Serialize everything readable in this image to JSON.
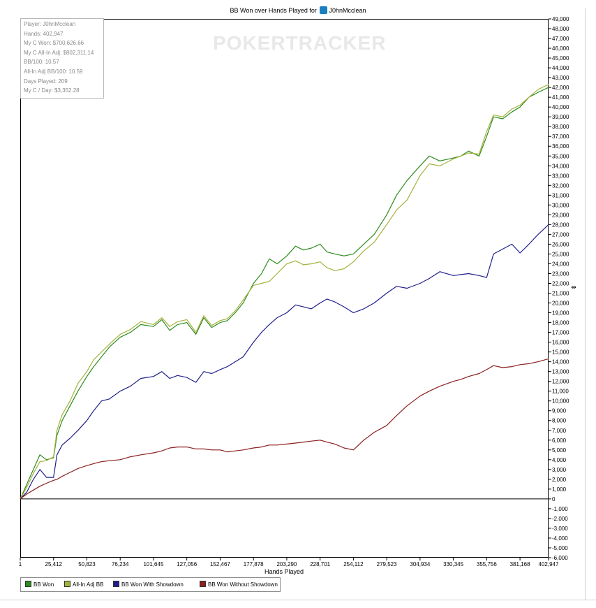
{
  "title_prefix": "BB Won over Hands Played for",
  "player_icon": "poker-site-icon",
  "player_name": "J0hnMcclean",
  "watermark": "POKERTRACKER",
  "stats": [
    "Player: J0hnMcclean",
    "Hands: 402,947",
    "My C Won: $700,626.66",
    "My C All-In Adj: $802,311.14",
    "BB/100: 10.57",
    "All-In Adj BB/100: 10.59",
    "Days Played: 209",
    "My C / Day: $3,352.28"
  ],
  "legend": [
    {
      "label": "BB Won",
      "color": "#2e8b1f"
    },
    {
      "label": "All-In Adj BB",
      "color": "#a4b23b"
    },
    {
      "label": "BB Won With Showdown",
      "color": "#1f1f8c"
    },
    {
      "label": "BB Won Without Showdown",
      "color": "#8b1f1f"
    }
  ],
  "chart_data": {
    "type": "line",
    "title": "BB Won over Hands Played for J0hnMcclean",
    "xlabel": "Hands Played",
    "ylabel": "",
    "xlim": [
      1,
      402947
    ],
    "ylim": [
      -6000,
      49000
    ],
    "x_ticks": [
      1,
      25412,
      50823,
      76234,
      101645,
      127056,
      152467,
      177878,
      203290,
      228701,
      254112,
      279523,
      304934,
      330345,
      355756,
      381168,
      402947
    ],
    "x_tick_labels": [
      "1",
      "25,412",
      "50,823",
      "76,234",
      "101,645",
      "127,056",
      "152,467",
      "177,878",
      "203,290",
      "228,701",
      "254,112",
      "279,523",
      "304,934",
      "330,345",
      "355,756",
      "381,168",
      "402,947"
    ],
    "y_ticks": [
      -6000,
      -5000,
      -4000,
      -3000,
      -2000,
      -1000,
      0,
      1000,
      2000,
      3000,
      4000,
      5000,
      6000,
      7000,
      8000,
      9000,
      10000,
      11000,
      12000,
      13000,
      14000,
      15000,
      16000,
      17000,
      18000,
      19000,
      20000,
      21000,
      22000,
      23000,
      24000,
      25000,
      26000,
      27000,
      28000,
      29000,
      30000,
      31000,
      32000,
      33000,
      34000,
      35000,
      36000,
      37000,
      38000,
      39000,
      40000,
      41000,
      42000,
      43000,
      44000,
      45000,
      46000,
      47000,
      48000,
      49000
    ],
    "y_tick_labels": [
      "-6,000",
      "-5,000",
      "-4,000",
      "-3,000",
      "-2,000",
      "-1,000",
      "0",
      "1,000",
      "2,000",
      "3,000",
      "4,000",
      "5,000",
      "6,000",
      "7,000",
      "8,000",
      "9,000",
      "10,000",
      "11,000",
      "12,000",
      "13,000",
      "14,000",
      "15,000",
      "16,000",
      "17,000",
      "18,000",
      "19,000",
      "20,000",
      "21,000",
      "22,000",
      "23,000",
      "24,000",
      "25,000",
      "26,000",
      "27,000",
      "28,000",
      "29,000",
      "30,000",
      "31,000",
      "32,000",
      "33,000",
      "34,000",
      "35,000",
      "36,000",
      "37,000",
      "38,000",
      "39,000",
      "40,000",
      "41,000",
      "42,000",
      "43,000",
      "44,000",
      "45,000",
      "46,000",
      "47,000",
      "48,000",
      "49,000"
    ],
    "legend_position": "bottom-left",
    "grid": false,
    "series": [
      {
        "name": "BB Won",
        "color": "#2e8b1f",
        "x": [
          1,
          5000,
          10000,
          15000,
          20000,
          25412,
          28000,
          32000,
          38000,
          44000,
          50823,
          56000,
          62000,
          68000,
          76234,
          84000,
          92000,
          101645,
          108000,
          114000,
          120000,
          127056,
          134000,
          140000,
          146000,
          152467,
          158000,
          164000,
          170000,
          177878,
          184000,
          190000,
          196000,
          203290,
          210000,
          216000,
          222000,
          228701,
          234000,
          240000,
          247000,
          254112,
          262000,
          270000,
          279523,
          287000,
          295000,
          304934,
          312000,
          320000,
          330345,
          336000,
          342000,
          350000,
          355756,
          361000,
          368000,
          375000,
          381168,
          388000,
          395000,
          402947
        ],
        "y": [
          0,
          1500,
          3000,
          4500,
          4000,
          4200,
          6500,
          8000,
          9500,
          11000,
          12500,
          13500,
          14500,
          15500,
          16500,
          17000,
          17800,
          17600,
          18300,
          17200,
          17800,
          18000,
          16800,
          18500,
          17500,
          18000,
          18200,
          19000,
          20000,
          22000,
          23000,
          24500,
          24000,
          24800,
          25800,
          25400,
          25600,
          26000,
          25200,
          25000,
          24800,
          25000,
          26000,
          27000,
          29000,
          31000,
          32500,
          34000,
          35000,
          34500,
          34800,
          35000,
          35500,
          35000,
          37000,
          39000,
          38800,
          39500,
          40000,
          41000,
          41500,
          42000
        ]
      },
      {
        "name": "All-In Adj BB",
        "color": "#a4b23b",
        "x": [
          1,
          5000,
          10000,
          15000,
          20000,
          25412,
          28000,
          32000,
          38000,
          44000,
          50823,
          56000,
          62000,
          68000,
          76234,
          84000,
          92000,
          101645,
          108000,
          114000,
          120000,
          127056,
          134000,
          140000,
          146000,
          152467,
          158000,
          164000,
          170000,
          177878,
          184000,
          190000,
          196000,
          203290,
          210000,
          216000,
          222000,
          228701,
          234000,
          240000,
          247000,
          254112,
          262000,
          270000,
          279523,
          287000,
          295000,
          304934,
          312000,
          320000,
          330345,
          336000,
          342000,
          350000,
          355756,
          361000,
          368000,
          375000,
          381168,
          388000,
          395000,
          402947
        ],
        "y": [
          0,
          1200,
          2600,
          3800,
          3900,
          4300,
          7000,
          8600,
          10000,
          11800,
          13000,
          14200,
          15000,
          15800,
          16800,
          17300,
          18100,
          17800,
          18500,
          17600,
          18100,
          18300,
          17000,
          18700,
          17700,
          18200,
          18400,
          19200,
          20300,
          21800,
          22000,
          22200,
          23000,
          24000,
          24300,
          23900,
          24000,
          24200,
          23600,
          23300,
          23500,
          24200,
          25300,
          26200,
          28000,
          29500,
          30500,
          33000,
          34200,
          34000,
          34700,
          35000,
          35300,
          35200,
          37500,
          39200,
          39000,
          39800,
          40200,
          41000,
          41800,
          42300
        ]
      },
      {
        "name": "BB Won With Showdown",
        "color": "#1f1f8c",
        "x": [
          1,
          5000,
          10000,
          15000,
          20000,
          25412,
          28000,
          32000,
          38000,
          44000,
          50823,
          56000,
          62000,
          68000,
          76234,
          84000,
          92000,
          101645,
          108000,
          114000,
          120000,
          127056,
          134000,
          140000,
          146000,
          152467,
          158000,
          164000,
          170000,
          177878,
          184000,
          190000,
          196000,
          203290,
          210000,
          216000,
          222000,
          228701,
          234000,
          240000,
          247000,
          254112,
          262000,
          270000,
          279523,
          287000,
          295000,
          304934,
          312000,
          320000,
          330345,
          336000,
          342000,
          350000,
          355756,
          361000,
          368000,
          375000,
          381168,
          388000,
          395000,
          402947
        ],
        "y": [
          0,
          700,
          2000,
          3000,
          2200,
          2200,
          4500,
          5500,
          6200,
          7000,
          8000,
          9000,
          10000,
          10200,
          11000,
          11500,
          12300,
          12500,
          13000,
          12300,
          12600,
          12400,
          11900,
          13000,
          12800,
          13200,
          13500,
          14000,
          14500,
          16000,
          17000,
          17800,
          18500,
          19000,
          19800,
          19600,
          19400,
          20000,
          20400,
          20100,
          19600,
          19000,
          19400,
          20000,
          21000,
          21700,
          21500,
          22000,
          22500,
          23200,
          22800,
          22900,
          23000,
          22800,
          22600,
          25000,
          25500,
          26000,
          25100,
          26000,
          27000,
          28000
        ]
      },
      {
        "name": "BB Won Without Showdown",
        "color": "#8b1f1f",
        "x": [
          1,
          5000,
          10000,
          15000,
          20000,
          25412,
          28000,
          32000,
          38000,
          44000,
          50823,
          56000,
          62000,
          68000,
          76234,
          84000,
          92000,
          101645,
          108000,
          114000,
          120000,
          127056,
          134000,
          140000,
          146000,
          152467,
          158000,
          164000,
          170000,
          177878,
          184000,
          190000,
          196000,
          203290,
          210000,
          216000,
          222000,
          228701,
          234000,
          240000,
          247000,
          254112,
          262000,
          270000,
          279523,
          287000,
          295000,
          304934,
          312000,
          320000,
          330345,
          336000,
          342000,
          350000,
          355756,
          361000,
          368000,
          375000,
          381168,
          388000,
          395000,
          402947
        ],
        "y": [
          0,
          500,
          900,
          1300,
          1600,
          1900,
          2000,
          2300,
          2700,
          3100,
          3400,
          3600,
          3800,
          3900,
          4000,
          4300,
          4500,
          4700,
          4900,
          5200,
          5300,
          5300,
          5100,
          5100,
          5000,
          5000,
          4800,
          4900,
          5000,
          5200,
          5300,
          5500,
          5500,
          5600,
          5700,
          5800,
          5900,
          6000,
          5800,
          5600,
          5200,
          5000,
          6000,
          6800,
          7500,
          8500,
          9500,
          10500,
          11000,
          11500,
          12000,
          12200,
          12500,
          12800,
          13200,
          13600,
          13400,
          13500,
          13700,
          13800,
          14000,
          14300
        ]
      }
    ]
  }
}
